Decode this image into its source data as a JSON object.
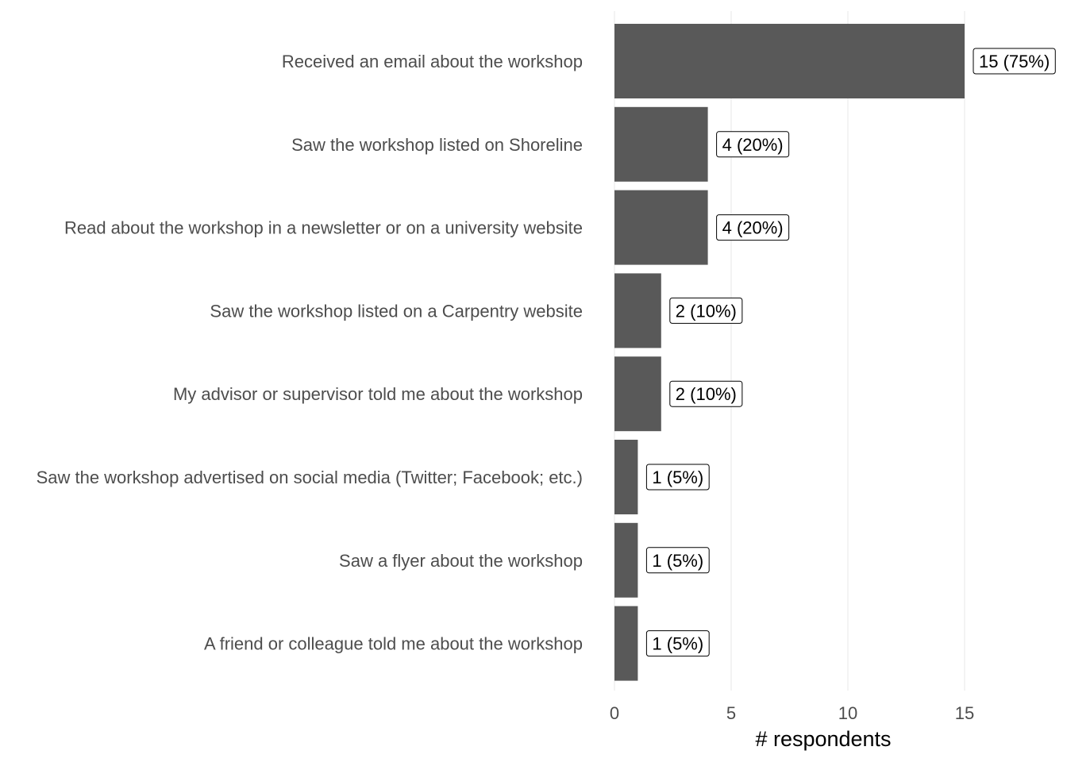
{
  "chart_data": {
    "type": "bar",
    "orientation": "horizontal",
    "categories": [
      "Received an email about the workshop",
      "Saw the workshop listed on Shoreline",
      "Read about the workshop in a newsletter or on a university website",
      "Saw the workshop listed on a Carpentry website",
      "My advisor or supervisor told me about the workshop",
      "Saw the workshop advertised on social media (Twitter; Facebook; etc.)",
      "Saw a flyer about the workshop",
      "A friend or colleague told me about the workshop"
    ],
    "values": [
      15,
      4,
      4,
      2,
      2,
      1,
      1,
      1
    ],
    "data_labels": [
      "15 (75%)",
      "4 (20%)",
      "4 (20%)",
      "2 (10%)",
      "2 (10%)",
      "1 (5%)",
      "1 (5%)",
      "1 (5%)"
    ],
    "title": "",
    "xlabel": "# respondents",
    "ylabel": "",
    "xlim": [
      0,
      19.5
    ],
    "x_ticks": [
      0,
      5,
      10,
      15
    ],
    "x_tick_labels": [
      "0",
      "5",
      "10",
      "15"
    ],
    "grid": true,
    "legend": "none",
    "bar_color": "#595959",
    "grid_color": "#ebebeb"
  }
}
